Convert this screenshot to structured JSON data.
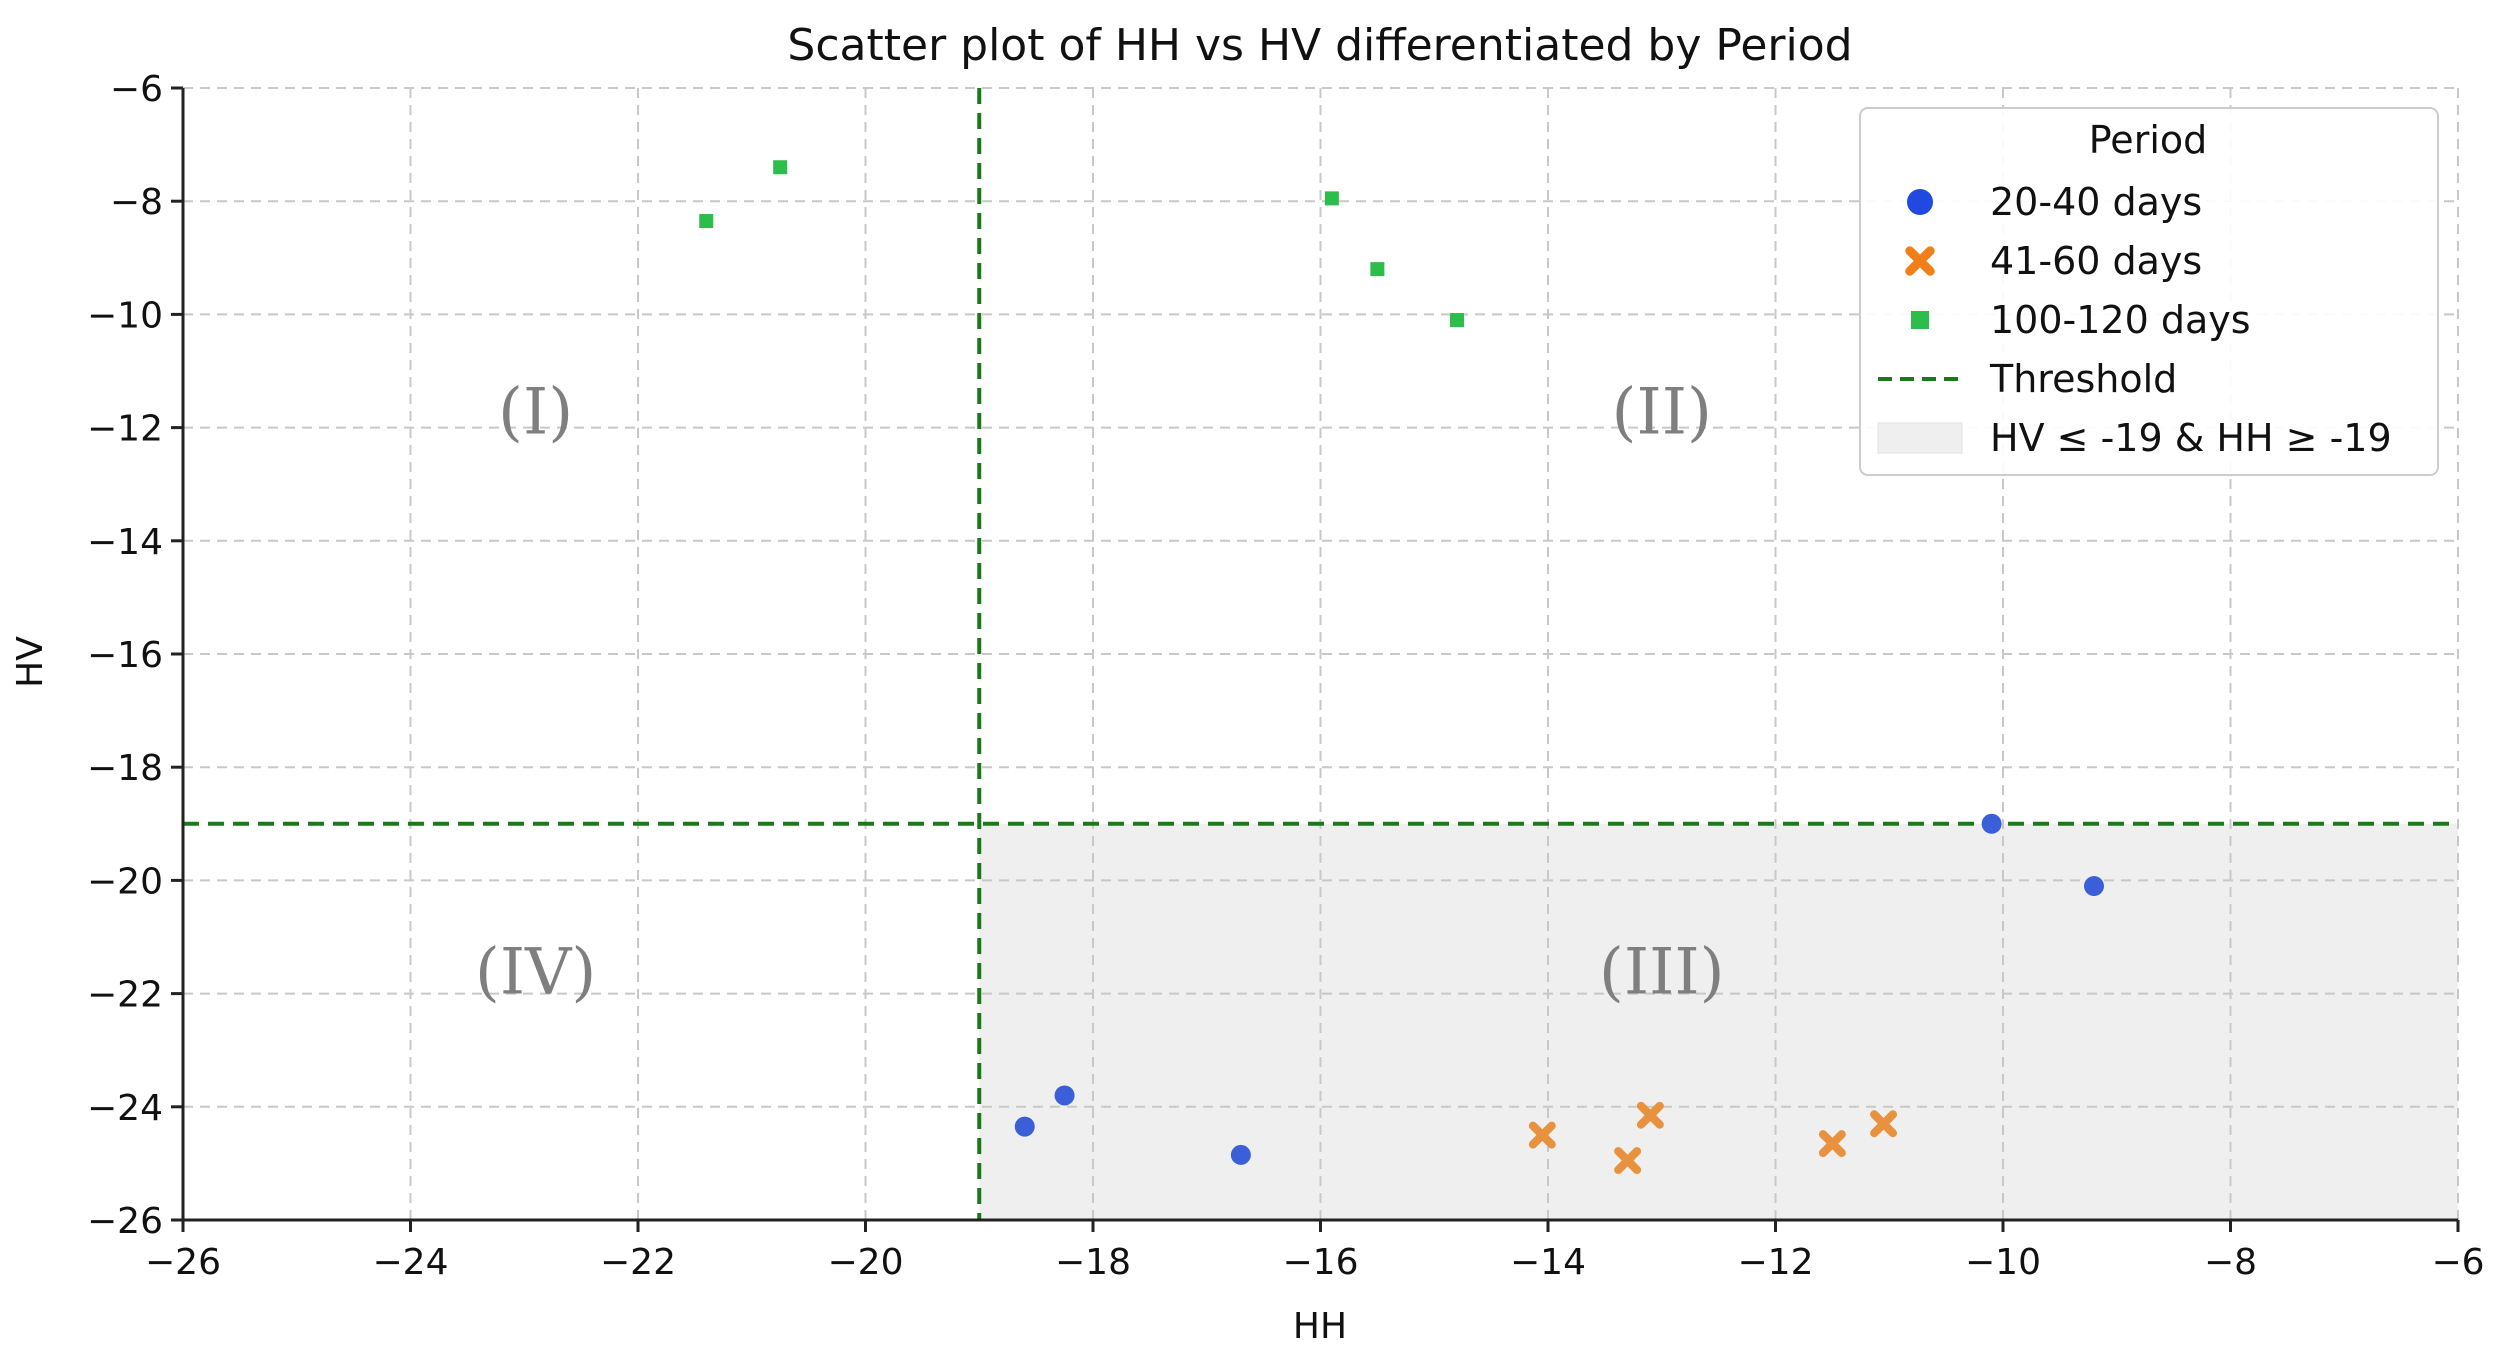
{
  "chart_data": {
    "type": "scatter",
    "title": "Scatter plot of HH vs HV differentiated by Period",
    "xlabel": "HH",
    "ylabel": "HV",
    "xlim": [
      -26,
      -6
    ],
    "ylim": [
      -26,
      -6
    ],
    "xticks": [
      -26,
      -24,
      -22,
      -20,
      -18,
      -16,
      -14,
      -12,
      -10,
      -8,
      -6
    ],
    "yticks": [
      -6,
      -8,
      -10,
      -12,
      -14,
      -16,
      -18,
      -20,
      -22,
      -24,
      -26
    ],
    "xtick_labels": [
      "−26",
      "−24",
      "−22",
      "−20",
      "−18",
      "−16",
      "−14",
      "−12",
      "−10",
      "−8",
      "−6"
    ],
    "ytick_labels": [
      "−6",
      "−8",
      "−10",
      "−12",
      "−14",
      "−16",
      "−18",
      "−20",
      "−22",
      "−24",
      "−26"
    ],
    "grid": true,
    "threshold": {
      "x": -19,
      "y": -19,
      "color": "#1a7a1a"
    },
    "shaded_region": {
      "x_from": -19,
      "x_to": -6,
      "y_from": -26,
      "y_to": -19,
      "color": "#efefef"
    },
    "series": [
      {
        "name": "20-40 days",
        "marker": "circle",
        "color": "#3a5fd9",
        "legend_color": "#1f49e0",
        "points": [
          [
            -18.6,
            -24.35
          ],
          [
            -18.25,
            -23.8
          ],
          [
            -16.7,
            -24.85
          ],
          [
            -10.1,
            -19.0
          ],
          [
            -9.2,
            -20.1
          ]
        ]
      },
      {
        "name": "41-60 days",
        "marker": "x",
        "color": "#e8913e",
        "legend_color": "#f07f19",
        "points": [
          [
            -14.05,
            -24.5
          ],
          [
            -13.3,
            -24.95
          ],
          [
            -13.1,
            -24.15
          ],
          [
            -11.5,
            -24.65
          ],
          [
            -11.05,
            -24.3
          ]
        ]
      },
      {
        "name": "100-120 days",
        "marker": "square",
        "color": "#2dbd4a",
        "legend_color": "#2dbd4a",
        "points": [
          [
            -21.4,
            -8.35
          ],
          [
            -20.75,
            -7.4
          ],
          [
            -15.9,
            -7.95
          ],
          [
            -15.5,
            -9.2
          ],
          [
            -14.8,
            -10.1
          ]
        ]
      }
    ],
    "annotations": [
      {
        "text": "(I)",
        "x": -22.9,
        "y": -12.1
      },
      {
        "text": "(II)",
        "x": -13.0,
        "y": -12.1
      },
      {
        "text": "(III)",
        "x": -13.0,
        "y": -22.0
      },
      {
        "text": "(IV)",
        "x": -22.9,
        "y": -22.0
      }
    ],
    "legend": {
      "title": "Period",
      "position": "top-right",
      "threshold_label": "Threshold",
      "region_label": "HV ≤ -19 & HH ≥ -19"
    }
  }
}
